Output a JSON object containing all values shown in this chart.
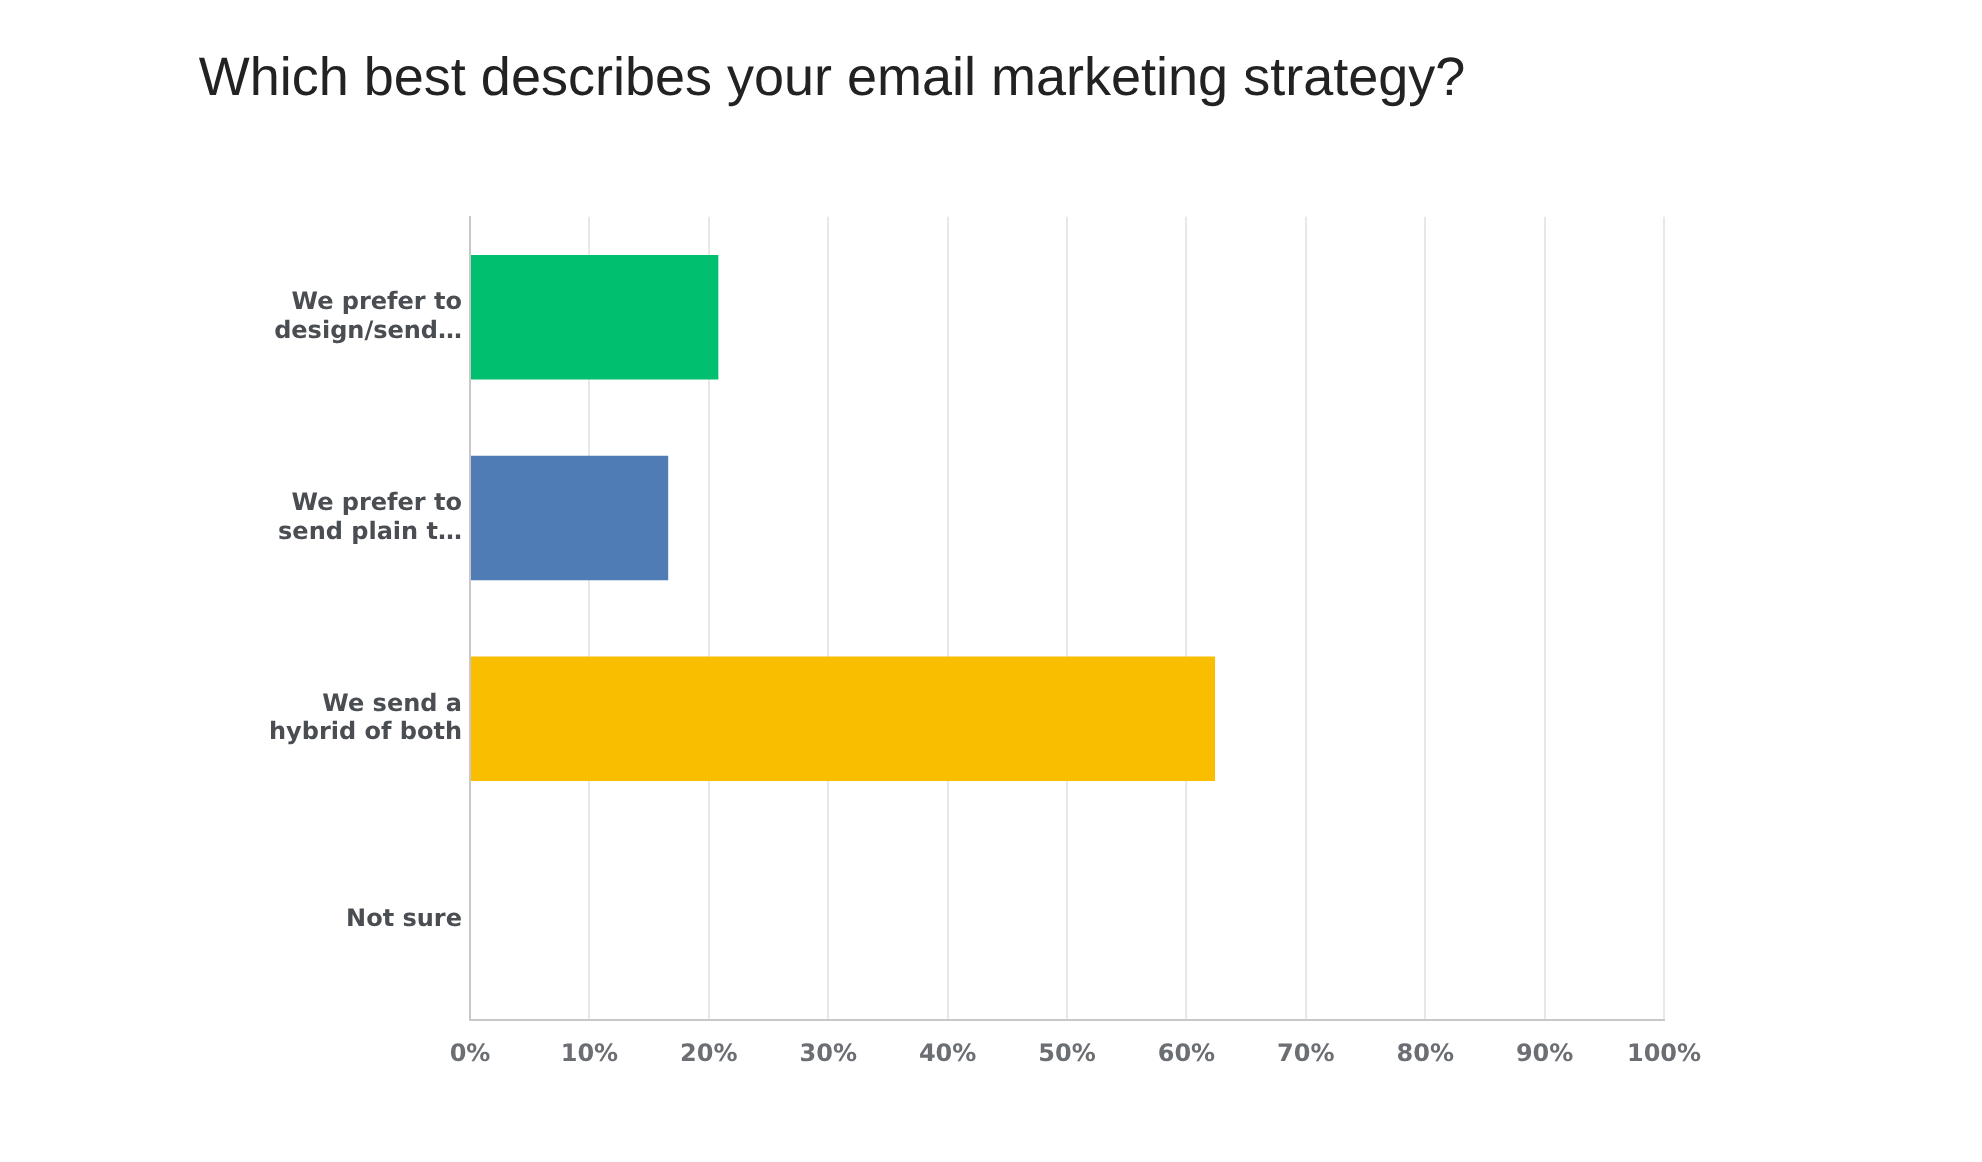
{
  "chart_data": {
    "type": "bar",
    "orientation": "horizontal",
    "title": "Which best describes your email marketing strategy?",
    "categories": [
      "We prefer to\ndesign/send…",
      "We prefer to\nsend plain t…",
      "We send a\nhybrid of both",
      "Not sure"
    ],
    "values": [
      20.8,
      16.6,
      62.4,
      0
    ],
    "colors": [
      "#00bf6f",
      "#507cb6",
      "#f9be00",
      "#9b6bcc"
    ],
    "xlim": [
      0,
      100
    ],
    "xticks": [
      {
        "value": 0,
        "label": "0%"
      },
      {
        "value": 10,
        "label": "10%"
      },
      {
        "value": 20,
        "label": "20%"
      },
      {
        "value": 30,
        "label": "30%"
      },
      {
        "value": 40,
        "label": "40%"
      },
      {
        "value": 50,
        "label": "50%"
      },
      {
        "value": 60,
        "label": "60%"
      },
      {
        "value": 70,
        "label": "70%"
      },
      {
        "value": 80,
        "label": "80%"
      },
      {
        "value": 90,
        "label": "90%"
      },
      {
        "value": 100,
        "label": "100%"
      }
    ],
    "grid": "x",
    "legend": false
  }
}
